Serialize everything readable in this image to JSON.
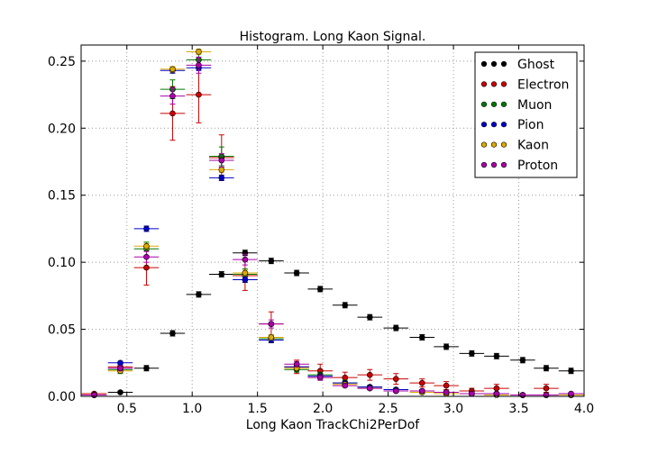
{
  "chart_data": {
    "type": "scatter",
    "title": "Histogram. Long Kaon Signal.",
    "xlabel": "Long Kaon TrackChi2PerDof",
    "ylabel": "",
    "xlim": [
      0.15,
      4.0
    ],
    "ylim": [
      0.0,
      0.262
    ],
    "xticks": [
      0.5,
      1.0,
      1.5,
      2.0,
      2.5,
      3.0,
      3.5,
      4.0
    ],
    "xtick_labels": [
      "0.5",
      "1.0",
      "1.5",
      "2.0",
      "2.5",
      "3.0",
      "3.5",
      "4.0"
    ],
    "yticks": [
      0.0,
      0.05,
      0.1,
      0.15,
      0.2,
      0.25
    ],
    "ytick_labels": [
      "0.00",
      "0.05",
      "0.10",
      "0.15",
      "0.20",
      "0.25"
    ],
    "grid": true,
    "legend_position": "top-right",
    "bin_half_width": 0.095,
    "series": [
      {
        "name": "Ghost",
        "color": "#000000",
        "x": [
          0.25,
          0.45,
          0.65,
          0.85,
          1.05,
          1.225,
          1.405,
          1.605,
          1.8,
          1.98,
          2.17,
          2.36,
          2.56,
          2.76,
          2.945,
          3.14,
          3.33,
          3.53,
          3.71,
          3.9
        ],
        "y": [
          0.001,
          0.003,
          0.021,
          0.047,
          0.076,
          0.091,
          0.107,
          0.101,
          0.092,
          0.08,
          0.068,
          0.059,
          0.051,
          0.044,
          0.037,
          0.032,
          0.03,
          0.027,
          0.021,
          0.019
        ],
        "err": [
          0.001,
          0.001,
          0.002,
          0.002,
          0.002,
          0.002,
          0.002,
          0.002,
          0.002,
          0.002,
          0.002,
          0.002,
          0.002,
          0.002,
          0.002,
          0.002,
          0.002,
          0.002,
          0.002,
          0.002
        ]
      },
      {
        "name": "Electron",
        "color": "#cc0000",
        "x": [
          0.25,
          0.45,
          0.65,
          0.85,
          1.05,
          1.225,
          1.405,
          1.605,
          1.8,
          1.98,
          2.17,
          2.36,
          2.56,
          2.76,
          2.945,
          3.14,
          3.33,
          3.53,
          3.71,
          3.9
        ],
        "y": [
          0.002,
          0.022,
          0.096,
          0.211,
          0.225,
          0.178,
          0.09,
          0.054,
          0.022,
          0.019,
          0.014,
          0.016,
          0.013,
          0.01,
          0.008,
          0.004,
          0.006,
          0.001,
          0.006,
          0.001
        ],
        "err": [
          0.001,
          0.004,
          0.013,
          0.02,
          0.021,
          0.017,
          0.011,
          0.009,
          0.005,
          0.005,
          0.004,
          0.004,
          0.004,
          0.003,
          0.003,
          0.002,
          0.003,
          0.001,
          0.003,
          0.001
        ]
      },
      {
        "name": "Muon",
        "color": "#007700",
        "x": [
          0.25,
          0.45,
          0.65,
          0.85,
          1.05,
          1.225,
          1.405,
          1.605,
          1.8,
          1.98,
          2.17,
          2.36,
          2.56,
          2.76,
          2.945,
          3.14,
          3.33,
          3.53,
          3.71,
          3.9
        ],
        "y": [
          0.001,
          0.02,
          0.11,
          0.229,
          0.251,
          0.179,
          0.091,
          0.043,
          0.02,
          0.016,
          0.01,
          0.007,
          0.005,
          0.004,
          0.003,
          0.002,
          0.002,
          0.001,
          0.001,
          0.001
        ],
        "err": [
          0.001,
          0.003,
          0.005,
          0.007,
          0.007,
          0.007,
          0.004,
          0.003,
          0.002,
          0.002,
          0.002,
          0.001,
          0.001,
          0.001,
          0.001,
          0.001,
          0.001,
          0.001,
          0.001,
          0.001
        ]
      },
      {
        "name": "Pion",
        "color": "#0000cc",
        "x": [
          0.25,
          0.45,
          0.65,
          0.85,
          1.05,
          1.225,
          1.405,
          1.605,
          1.8,
          1.98,
          2.17,
          2.36,
          2.56,
          2.76,
          2.945,
          3.14,
          3.33,
          3.53,
          3.71,
          3.9
        ],
        "y": [
          0.001,
          0.025,
          0.125,
          0.243,
          0.245,
          0.163,
          0.087,
          0.042,
          0.022,
          0.015,
          0.01,
          0.007,
          0.005,
          0.004,
          0.003,
          0.002,
          0.002,
          0.001,
          0.001,
          0.001
        ],
        "err": [
          0.001,
          0.001,
          0.002,
          0.002,
          0.002,
          0.002,
          0.002,
          0.002,
          0.001,
          0.001,
          0.001,
          0.001,
          0.001,
          0.001,
          0.001,
          0.001,
          0.001,
          0.001,
          0.001,
          0.001
        ]
      },
      {
        "name": "Kaon",
        "color": "#ddaa00",
        "x": [
          0.25,
          0.45,
          0.65,
          0.85,
          1.05,
          1.225,
          1.405,
          1.605,
          1.8,
          1.98,
          2.17,
          2.36,
          2.56,
          2.76,
          2.945,
          3.14,
          3.33,
          3.53,
          3.71,
          3.9
        ],
        "y": [
          0.001,
          0.019,
          0.112,
          0.244,
          0.257,
          0.169,
          0.092,
          0.044,
          0.021,
          0.014,
          0.009,
          0.006,
          0.004,
          0.003,
          0.002,
          0.002,
          0.001,
          0.001,
          0.001,
          0.001
        ],
        "err": [
          0.001,
          0.001,
          0.002,
          0.002,
          0.002,
          0.002,
          0.002,
          0.002,
          0.001,
          0.001,
          0.001,
          0.001,
          0.001,
          0.001,
          0.001,
          0.001,
          0.001,
          0.001,
          0.001,
          0.001
        ]
      },
      {
        "name": "Proton",
        "color": "#aa00aa",
        "x": [
          0.25,
          0.45,
          0.65,
          0.85,
          1.05,
          1.225,
          1.405,
          1.605,
          1.8,
          1.98,
          2.17,
          2.36,
          2.56,
          2.76,
          2.945,
          3.14,
          3.33,
          3.53,
          3.71,
          3.9
        ],
        "y": [
          0.001,
          0.021,
          0.104,
          0.224,
          0.247,
          0.176,
          0.102,
          0.054,
          0.024,
          0.014,
          0.008,
          0.006,
          0.004,
          0.004,
          0.003,
          0.002,
          0.002,
          0.001,
          0.001,
          0.002
        ],
        "err": [
          0.001,
          0.002,
          0.004,
          0.006,
          0.006,
          0.005,
          0.004,
          0.003,
          0.002,
          0.002,
          0.001,
          0.001,
          0.001,
          0.001,
          0.001,
          0.001,
          0.001,
          0.001,
          0.001,
          0.001
        ]
      }
    ]
  }
}
